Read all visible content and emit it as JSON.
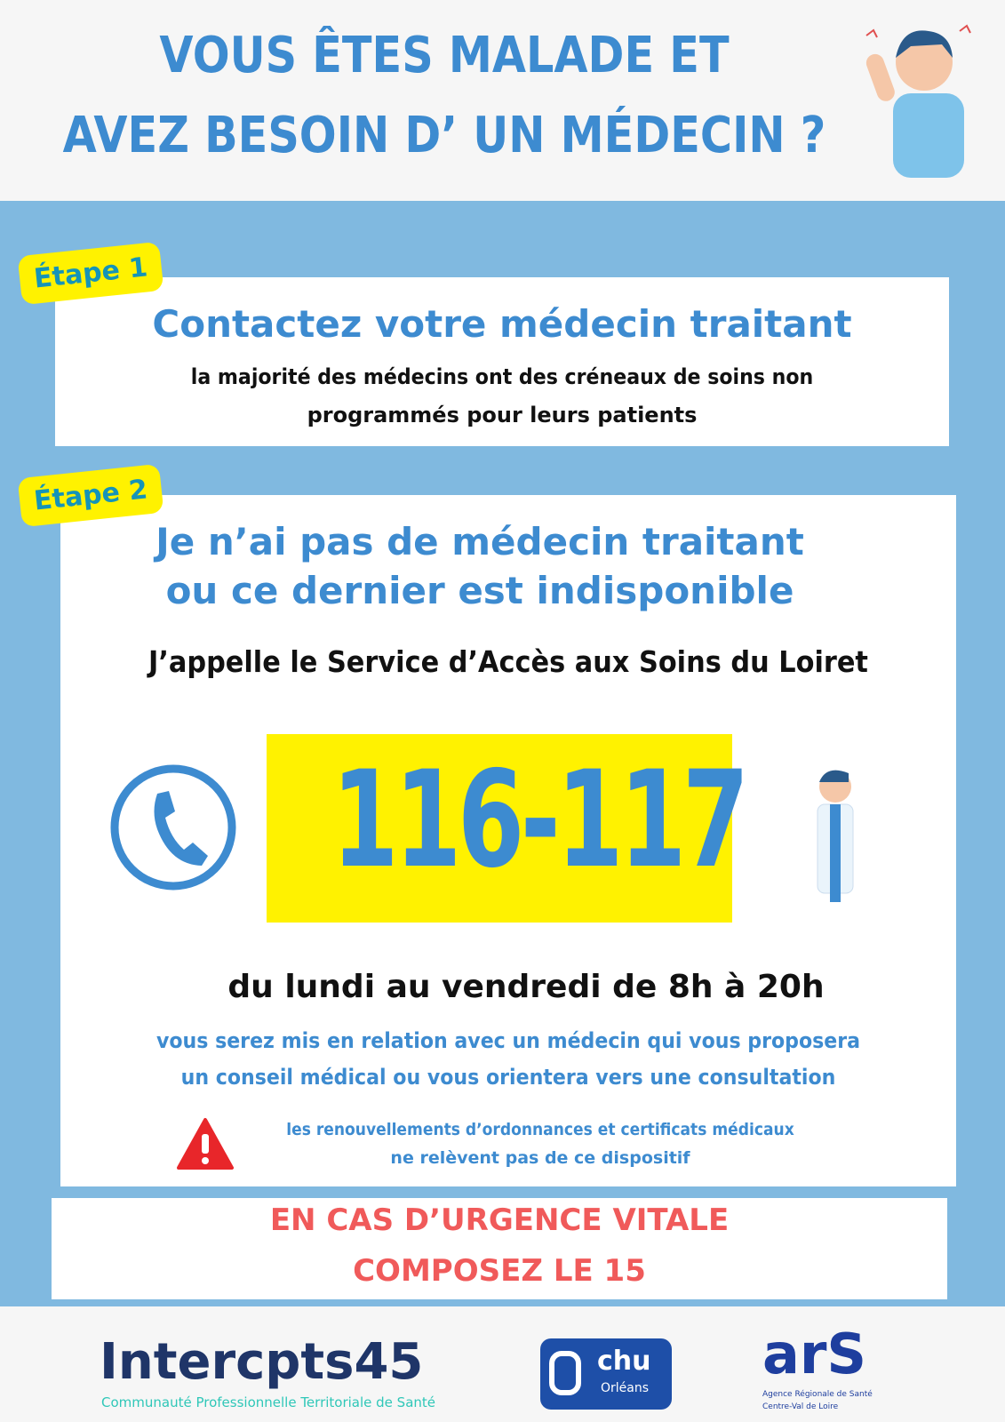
{
  "header": {
    "title_line1": "VOUS ÊTES MALADE ET",
    "title_line2": "AVEZ BESOIN D’ UN MÉDECIN ?",
    "illustration": "sick-person-icon"
  },
  "step1": {
    "tag": "Étape 1",
    "heading": "Contactez votre médecin traitant",
    "text_line1": "la majorité des médecins ont des créneaux de soins non",
    "text_line2": "programmés pour leurs patients"
  },
  "step2": {
    "tag": "Étape 2",
    "heading_line1": "Je n’ai pas de médecin traitant",
    "heading_line2": "ou ce dernier est indisponible",
    "call_text": "J’appelle le Service d’Accès aux Soins du Loiret",
    "phone": "116-117",
    "hours": "du lundi au vendredi de 8h à 20h",
    "info_line1": "vous serez mis en relation avec un médecin qui vous proposera",
    "info_line2": "un conseil médical ou vous orientera vers une consultation",
    "warning_line1": "les renouvellements d’ordonnances et certificats médicaux",
    "warning_line2": "ne relèvent pas de ce dispositif"
  },
  "emergency": {
    "line1": "EN CAS D’URGENCE VITALE",
    "line2": "COMPOSEZ LE 15"
  },
  "footer": {
    "logo1": "Intercpts45",
    "logo1_sub": "Communauté Professionnelle Territoriale de Santé",
    "logo2": "chu",
    "logo2_sub": "Orléans",
    "logo3": "arS",
    "logo3_sub1": "Agence Régionale de Santé",
    "logo3_sub2": "Centre-Val de Loire"
  },
  "colors": {
    "accent": "#3d8bd0",
    "background": "#80b9e0",
    "highlight": "#fff200",
    "alert": "#f05a5a"
  }
}
